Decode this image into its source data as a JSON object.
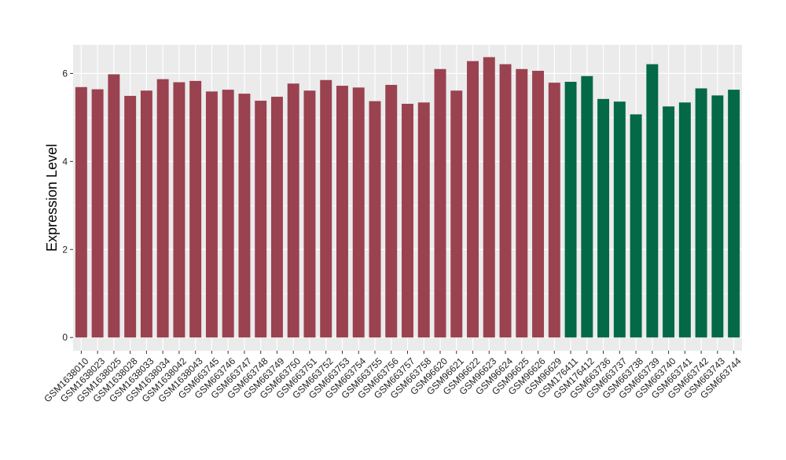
{
  "chart_data": {
    "type": "bar",
    "title": "",
    "xlabel": "",
    "ylabel": "Expression Level",
    "ylim": [
      -0.3,
      6.65
    ],
    "yticks": [
      0,
      2,
      4,
      6
    ],
    "grid": true,
    "legend": "none",
    "colors": {
      "panel": "#EBEBEB",
      "grid": "#FFFFFF",
      "group_a": "#9A4250",
      "group_b": "#036946"
    },
    "categories": [
      "GSM1638010",
      "GSM1638023",
      "GSM1638025",
      "GSM1638028",
      "GSM1638033",
      "GSM1638034",
      "GSM1638042",
      "GSM1638043",
      "GSM663745",
      "GSM663746",
      "GSM663747",
      "GSM663748",
      "GSM663749",
      "GSM663750",
      "GSM663751",
      "GSM663752",
      "GSM663753",
      "GSM663754",
      "GSM663755",
      "GSM663756",
      "GSM663757",
      "GSM663758",
      "GSM96620",
      "GSM96621",
      "GSM96622",
      "GSM96623",
      "GSM96624",
      "GSM96625",
      "GSM96626",
      "GSM96629",
      "GSM176411",
      "GSM176412",
      "GSM663736",
      "GSM663737",
      "GSM663738",
      "GSM663739",
      "GSM663740",
      "GSM663741",
      "GSM663742",
      "GSM663743",
      "GSM663744"
    ],
    "values": [
      5.69,
      5.64,
      5.98,
      5.49,
      5.61,
      5.87,
      5.8,
      5.83,
      5.59,
      5.63,
      5.54,
      5.38,
      5.47,
      5.77,
      5.61,
      5.85,
      5.72,
      5.68,
      5.37,
      5.74,
      5.31,
      5.34,
      6.1,
      5.61,
      6.28,
      6.37,
      6.21,
      6.1,
      6.06,
      5.79,
      5.81,
      5.94,
      5.42,
      5.36,
      5.07,
      6.21,
      5.25,
      5.34,
      5.66,
      5.5,
      5.63
    ],
    "groups": [
      "a",
      "a",
      "a",
      "a",
      "a",
      "a",
      "a",
      "a",
      "a",
      "a",
      "a",
      "a",
      "a",
      "a",
      "a",
      "a",
      "a",
      "a",
      "a",
      "a",
      "a",
      "a",
      "a",
      "a",
      "a",
      "a",
      "a",
      "a",
      "a",
      "a",
      "b",
      "b",
      "b",
      "b",
      "b",
      "b",
      "b",
      "b",
      "b",
      "b",
      "b"
    ]
  }
}
